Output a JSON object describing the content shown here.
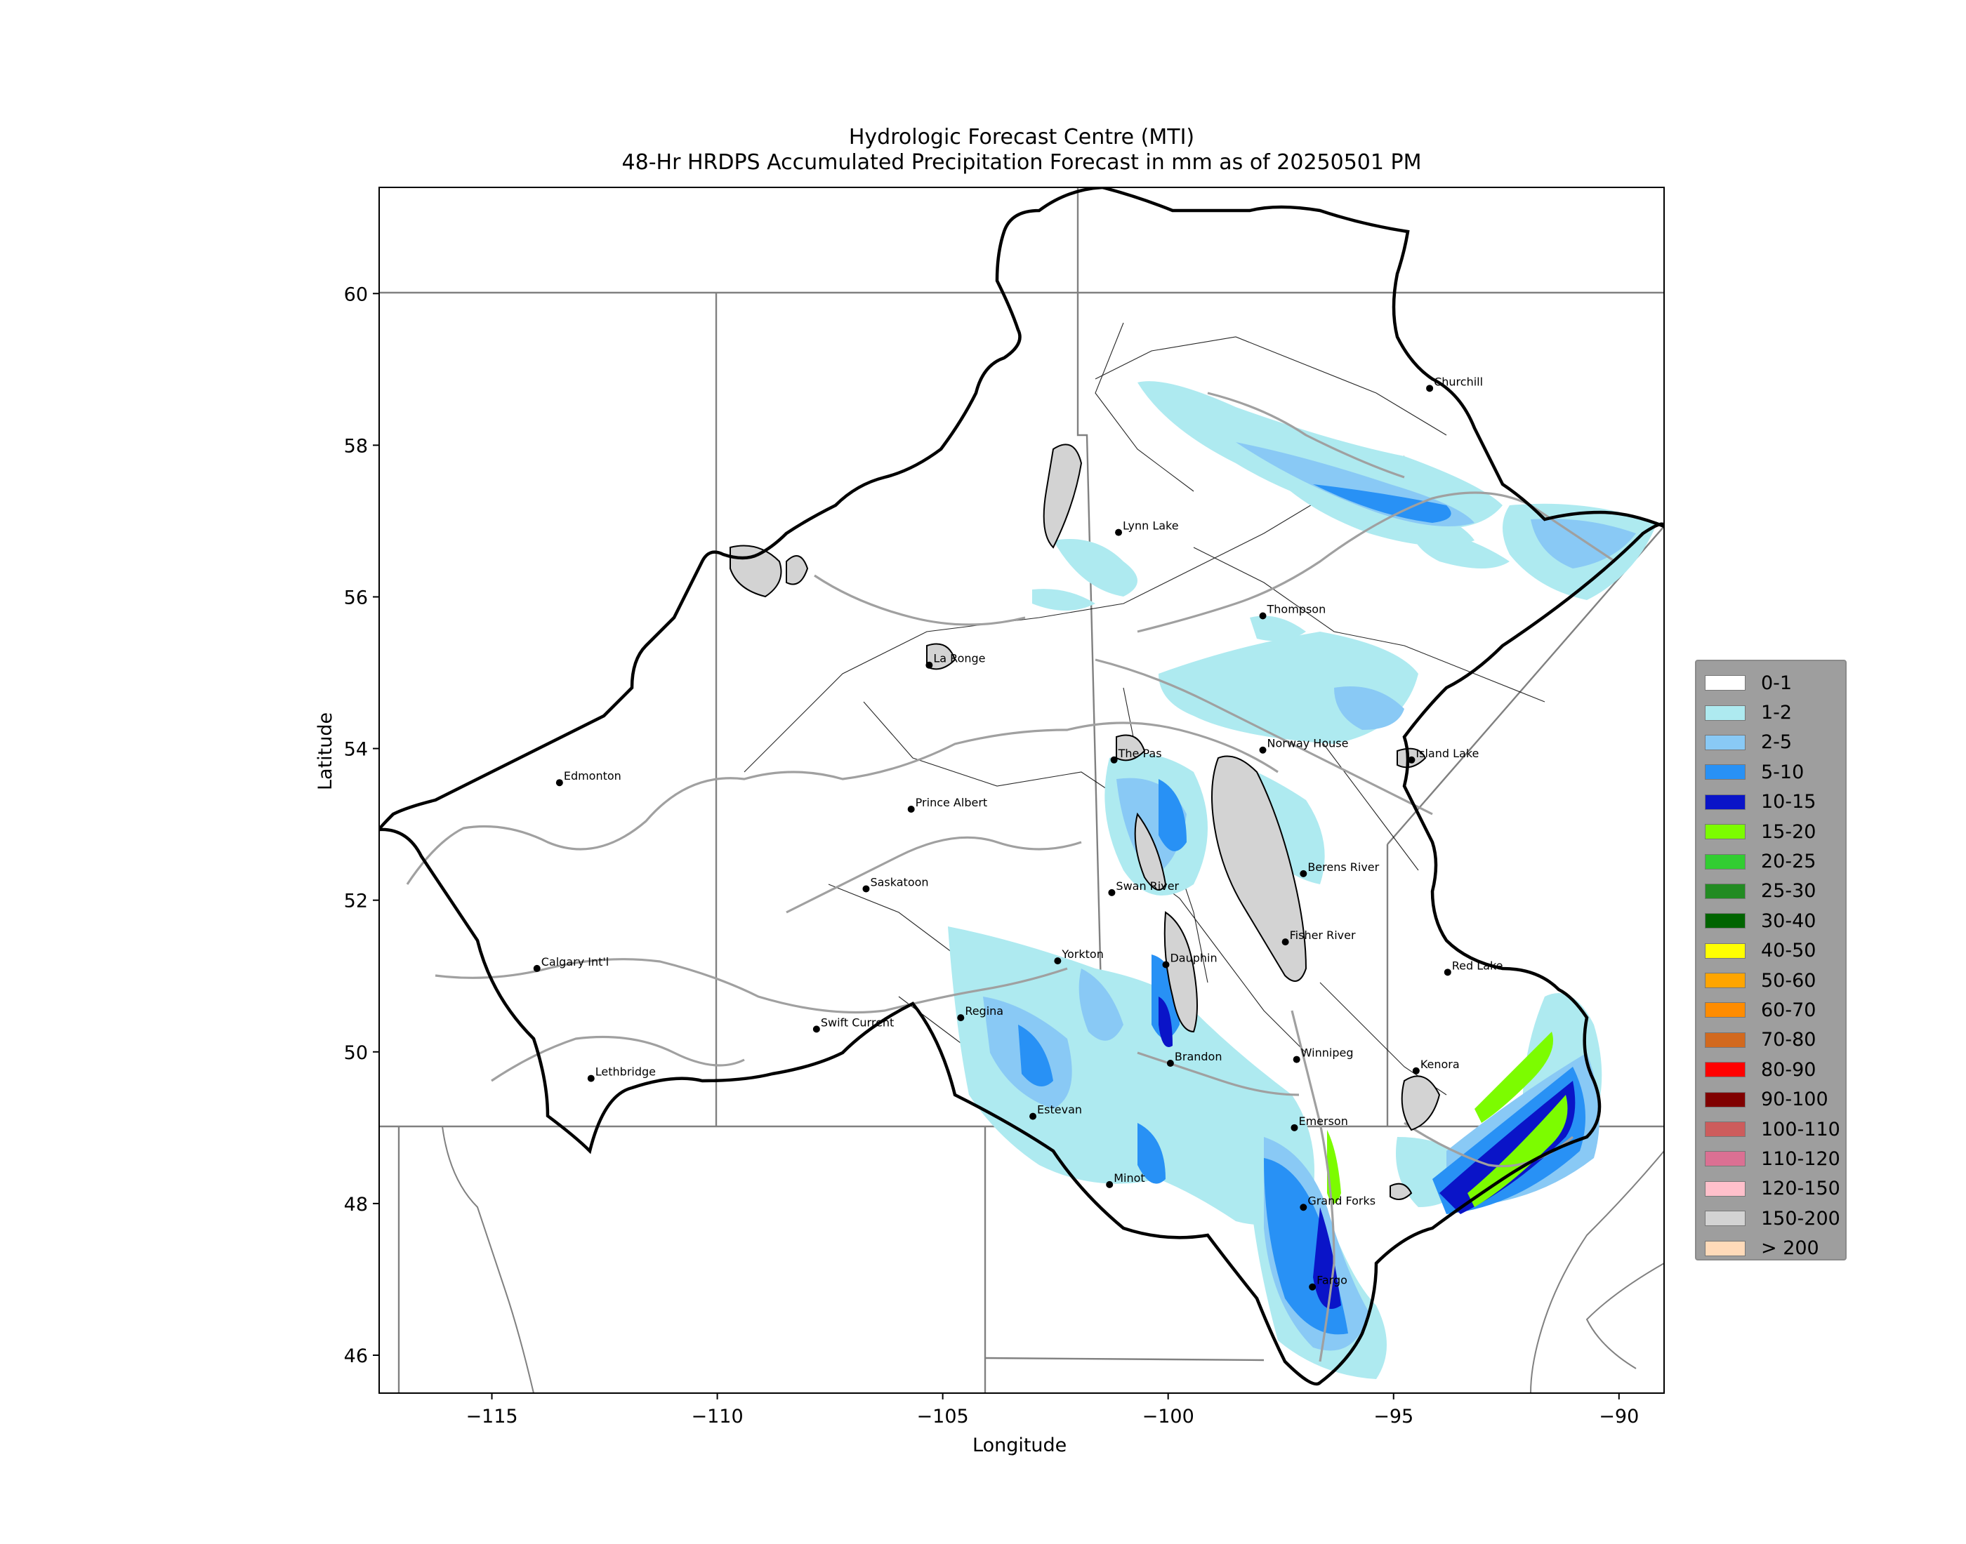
{
  "title": {
    "line1": "Hydrologic Forecast Centre (MTI)",
    "line2": "48-Hr HRDPS Accumulated Precipitation Forecast in mm as of 20250501 PM"
  },
  "axes": {
    "xlabel": "Longitude",
    "ylabel": "Latitude",
    "xlim": [
      -117.5,
      -89
    ],
    "ylim": [
      45.5,
      61.4
    ],
    "xticks": [
      -115,
      -110,
      -105,
      -100,
      -95,
      -90
    ],
    "yticks": [
      46,
      48,
      50,
      52,
      54,
      56,
      58,
      60
    ],
    "xtick_labels": [
      "−115",
      "−110",
      "−105",
      "−100",
      "−95",
      "−90"
    ],
    "ytick_labels": [
      "46",
      "48",
      "50",
      "52",
      "54",
      "56",
      "58",
      "60"
    ]
  },
  "cities": [
    {
      "name": "Churchill",
      "lon": -94.2,
      "lat": 58.75
    },
    {
      "name": "Lynn Lake",
      "lon": -101.1,
      "lat": 56.85
    },
    {
      "name": "Thompson",
      "lon": -97.9,
      "lat": 55.75
    },
    {
      "name": "La Ronge",
      "lon": -105.3,
      "lat": 55.1
    },
    {
      "name": "The Pas",
      "lon": -101.2,
      "lat": 53.85
    },
    {
      "name": "Norway House",
      "lon": -97.9,
      "lat": 53.98
    },
    {
      "name": "Island Lake",
      "lon": -94.6,
      "lat": 53.85
    },
    {
      "name": "Edmonton",
      "lon": -113.5,
      "lat": 53.55
    },
    {
      "name": "Prince Albert",
      "lon": -105.7,
      "lat": 53.2
    },
    {
      "name": "Saskatoon",
      "lon": -106.7,
      "lat": 52.15
    },
    {
      "name": "Swan River",
      "lon": -101.25,
      "lat": 52.1
    },
    {
      "name": "Berens River",
      "lon": -97.0,
      "lat": 52.35
    },
    {
      "name": "Fisher River",
      "lon": -97.4,
      "lat": 51.45
    },
    {
      "name": "Yorkton",
      "lon": -102.45,
      "lat": 51.2
    },
    {
      "name": "Dauphin",
      "lon": -100.05,
      "lat": 51.15
    },
    {
      "name": "Calgary Int'l",
      "lon": -114.0,
      "lat": 51.1
    },
    {
      "name": "Red Lake",
      "lon": -93.8,
      "lat": 51.05
    },
    {
      "name": "Regina",
      "lon": -104.6,
      "lat": 50.45
    },
    {
      "name": "Swift Current",
      "lon": -107.8,
      "lat": 50.3
    },
    {
      "name": "Brandon",
      "lon": -99.95,
      "lat": 49.85
    },
    {
      "name": "Winnipeg",
      "lon": -97.15,
      "lat": 49.9
    },
    {
      "name": "Kenora",
      "lon": -94.5,
      "lat": 49.75
    },
    {
      "name": "Lethbridge",
      "lon": -112.8,
      "lat": 49.65
    },
    {
      "name": "Estevan",
      "lon": -103.0,
      "lat": 49.15
    },
    {
      "name": "Emerson",
      "lon": -97.2,
      "lat": 49.0
    },
    {
      "name": "Minot",
      "lon": -101.3,
      "lat": 48.25
    },
    {
      "name": "Grand Forks",
      "lon": -97.0,
      "lat": 47.95
    },
    {
      "name": "Fargo",
      "lon": -96.8,
      "lat": 46.9
    }
  ],
  "legend": {
    "entries": [
      {
        "label": "0-1",
        "color": "#ffffff"
      },
      {
        "label": "1-2",
        "color": "#aeeaf0"
      },
      {
        "label": "2-5",
        "color": "#89c9f5"
      },
      {
        "label": "5-10",
        "color": "#2891f5"
      },
      {
        "label": "10-15",
        "color": "#0a14c8"
      },
      {
        "label": "15-20",
        "color": "#7cfc00"
      },
      {
        "label": "20-25",
        "color": "#32cd32"
      },
      {
        "label": "25-30",
        "color": "#228b22"
      },
      {
        "label": "30-40",
        "color": "#006400"
      },
      {
        "label": "40-50",
        "color": "#ffff00"
      },
      {
        "label": "50-60",
        "color": "#ffa500"
      },
      {
        "label": "60-70",
        "color": "#ff8c00"
      },
      {
        "label": "70-80",
        "color": "#d2691e"
      },
      {
        "label": "80-90",
        "color": "#ff0000"
      },
      {
        "label": "90-100",
        "color": "#800000"
      },
      {
        "label": "100-110",
        "color": "#cd5c5c"
      },
      {
        "label": "110-120",
        "color": "#db7093"
      },
      {
        "label": "120-150",
        "color": "#ffc0cb"
      },
      {
        "label": "150-200",
        "color": "#d3d3d3"
      },
      {
        "label": "> 200",
        "color": "#ffdab9"
      }
    ]
  }
}
